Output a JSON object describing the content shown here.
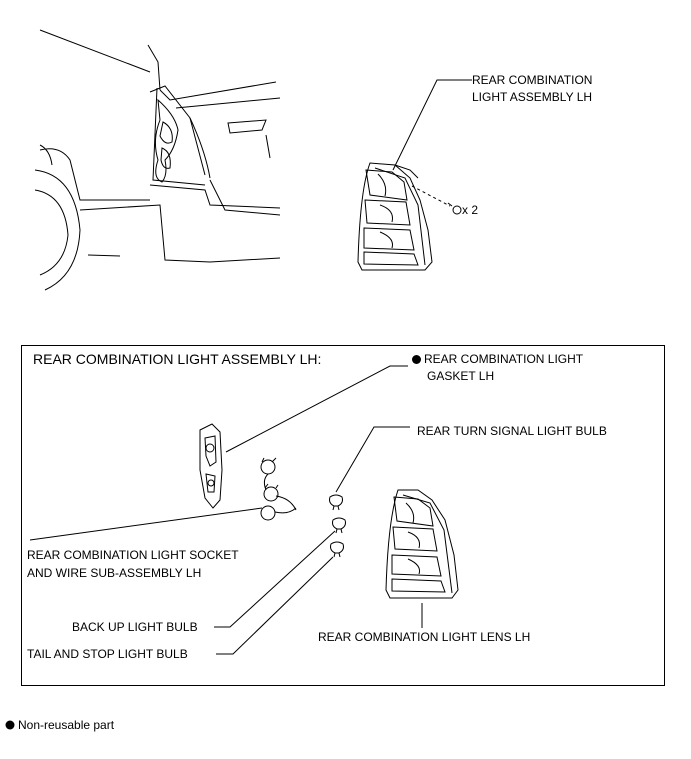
{
  "top": {
    "assembly_label_l1": "REAR COMBINATION",
    "assembly_label_l2": "LIGHT ASSEMBLY LH",
    "qty_label": "x 2"
  },
  "box": {
    "title": "REAR COMBINATION LIGHT ASSEMBLY LH:",
    "gasket_l1": "REAR COMBINATION LIGHT",
    "gasket_l2": "GASKET LH",
    "turn_bulb": "REAR TURN SIGNAL LIGHT BULB",
    "socket_l1": "REAR COMBINATION LIGHT SOCKET",
    "socket_l2": "AND WIRE SUB-ASSEMBLY LH",
    "backup_bulb": "BACK UP LIGHT BULB",
    "tail_bulb": "TAIL AND STOP LIGHT BULB",
    "lens": "REAR COMBINATION LIGHT LENS LH"
  },
  "legend": {
    "non_reusable": "Non-reusable part"
  }
}
